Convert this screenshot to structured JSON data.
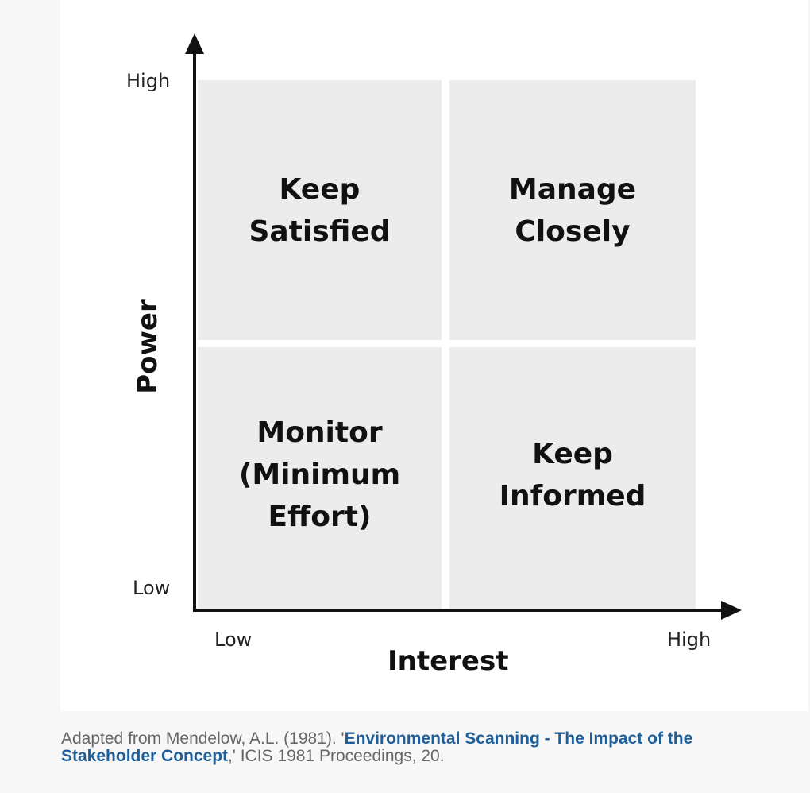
{
  "diagram": {
    "quadrants": {
      "top_left": "Keep\nSatisfied",
      "top_right": "Manage\nClosely",
      "bottom_left": "Monitor\n(Minimum\nEffort)",
      "bottom_right": "Keep\nInformed"
    },
    "y_axis": {
      "title": "Power",
      "high": "High",
      "low": "Low"
    },
    "x_axis": {
      "title": "Interest",
      "low": "Low",
      "high": "High"
    }
  },
  "caption": {
    "prefix": "Adapted from Mendelow, A.L. (1981). '",
    "link_text": "Environmental Scanning - The Impact of the Stakeholder Concept",
    "suffix": ",' ICIS 1981 Proceedings, 20."
  },
  "colors": {
    "quadrant_fill": "#ececec",
    "axis": "#111111",
    "link": "#1f5f99",
    "caption_text": "#666666"
  }
}
